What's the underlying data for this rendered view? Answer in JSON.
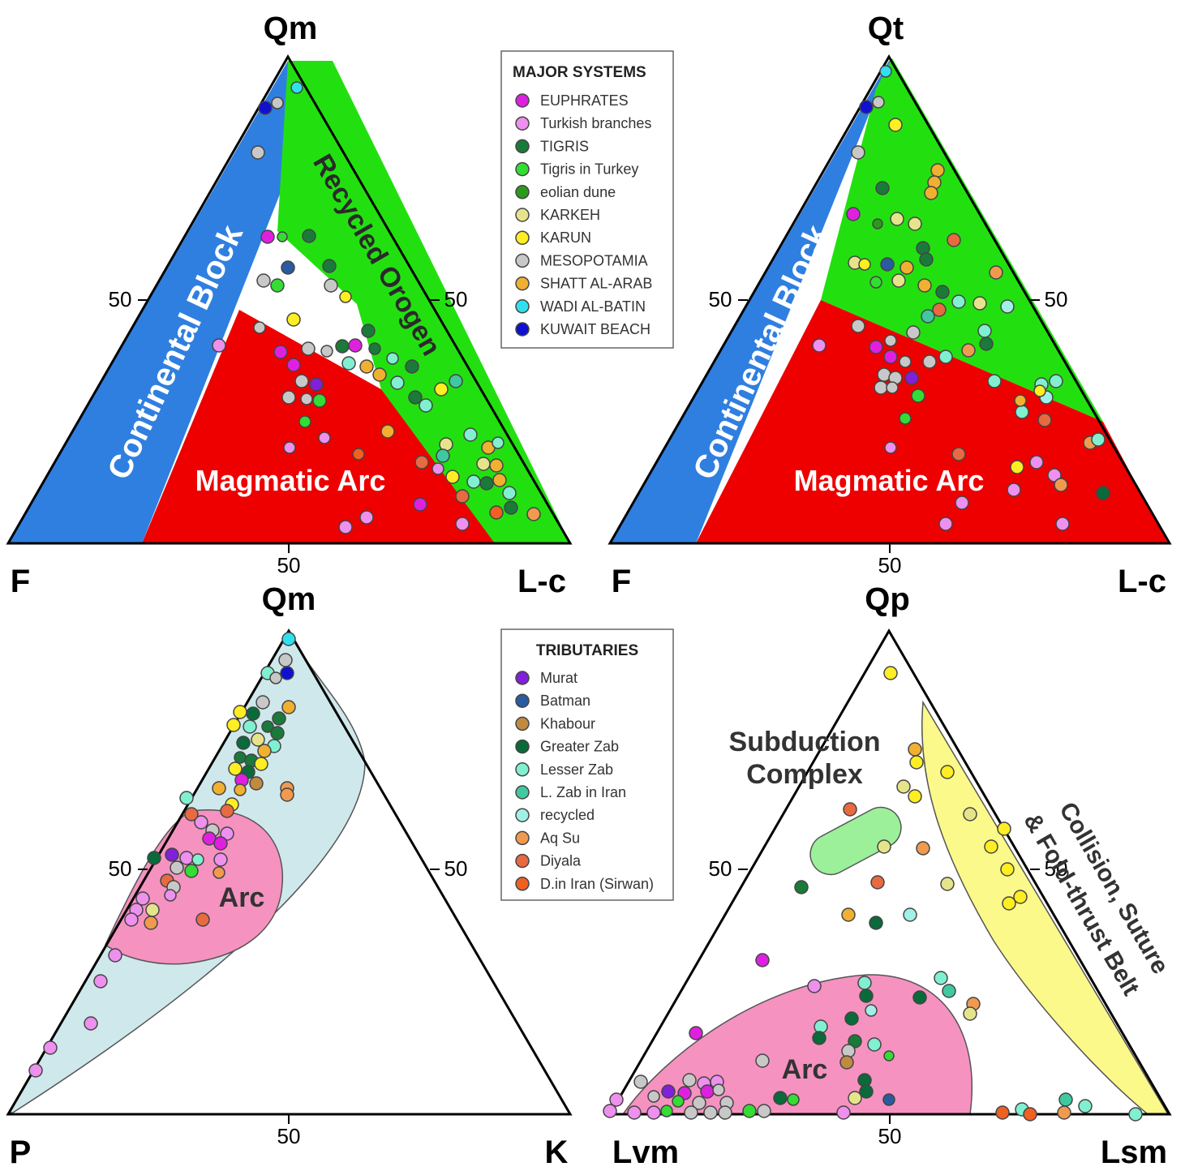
{
  "diagrams": [
    {
      "apex_top": "Qm",
      "apex_left": "F",
      "apex_right": "L-c",
      "tick_left": "50",
      "tick_right": "50",
      "tick_bottom": "50",
      "regions": [
        "Continental Block",
        "Recycled Orogen",
        "Magmatic Arc"
      ]
    },
    {
      "apex_top": "Qt",
      "apex_left": "F",
      "apex_right": "L-c",
      "tick_left": "50",
      "tick_right": "50",
      "tick_bottom": "50",
      "regions": [
        "Continental Block",
        "Magmatic Arc"
      ]
    },
    {
      "apex_top": "Qm",
      "apex_left": "P",
      "apex_right": "K",
      "tick_left": "50",
      "tick_right": "50",
      "tick_bottom": "50",
      "regions": [
        "Arc"
      ]
    },
    {
      "apex_top": "Qp",
      "apex_left": "Lvm",
      "apex_right": "Lsm",
      "tick_left": "50",
      "tick_right": "50",
      "tick_bottom": "50",
      "regions": [
        "Subduction",
        "Complex",
        "Arc",
        "Collision, Suture",
        "& Fold-thrust Belt"
      ]
    }
  ],
  "legend_major": {
    "title": "MAJOR SYSTEMS",
    "items": [
      {
        "label": "EUPHRATES",
        "color": "#e020e0"
      },
      {
        "label": "Turkish branches",
        "color": "#ee90ee"
      },
      {
        "label": "TIGRIS",
        "color": "#1a7a3a"
      },
      {
        "label": "Tigris in Turkey",
        "color": "#33dd33"
      },
      {
        "label": "eolian dune",
        "color": "#2a9a1a"
      },
      {
        "label": "KARKEH",
        "color": "#e6e48a"
      },
      {
        "label": "KARUN",
        "color": "#ffee22"
      },
      {
        "label": "MESOPOTAMIA",
        "color": "#c8c8c8"
      },
      {
        "label": "SHATT AL-ARAB",
        "color": "#f0b030"
      },
      {
        "label": "WADI AL-BATIN",
        "color": "#30e0ee"
      },
      {
        "label": "KUWAIT BEACH",
        "color": "#1010d0"
      }
    ]
  },
  "legend_tributaries": {
    "title": "TRIBUTARIES",
    "items": [
      {
        "label": "Murat",
        "color": "#8020d8"
      },
      {
        "label": "Batman",
        "color": "#2a5aa0"
      },
      {
        "label": "Khabour",
        "color": "#c08a40"
      },
      {
        "label": "Greater Zab",
        "color": "#0a6a3a"
      },
      {
        "label": "Lesser Zab",
        "color": "#80f0d0"
      },
      {
        "label": "L. Zab in Iran",
        "color": "#40c8a0"
      },
      {
        "label": "recycled",
        "color": "#a0f0e8"
      },
      {
        "label": "Aq Su",
        "color": "#f09a50"
      },
      {
        "label": "Diyala",
        "color": "#e86a40"
      },
      {
        "label": "D.in Iran (Sirwan)",
        "color": "#f06020"
      }
    ]
  }
}
